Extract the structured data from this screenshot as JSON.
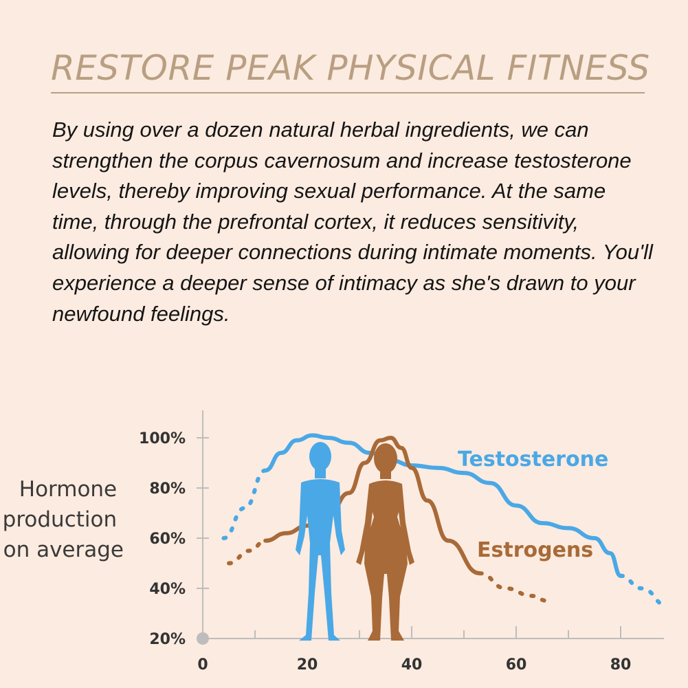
{
  "headline": "RESTORE PEAK PHYSICAL FITNESS",
  "body_text": "By using over a dozen natural herbal ingredients, we can strengthen the corpus cavernosum and increase testosterone levels, thereby improving sexual performance. At the same time, through the prefrontal cortex, it reduces sensitivity, allowing for deeper connections during intimate moments. You'll experience a deeper sense of intimacy as she's drawn to your newfound feelings.",
  "colors": {
    "background": "#fcebe0",
    "headline": "#b89f82",
    "testosterone": "#4aa8e6",
    "estrogens": "#a86a38",
    "axis": "#bdbdbd",
    "figure_male": "#4aa8e6",
    "figure_female": "#a86a38"
  },
  "icons": [
    "male-figure-icon",
    "female-figure-icon"
  ],
  "chart_data": {
    "type": "line",
    "ylabel": "Hormone production on average",
    "ylabel_lines": [
      "Hormone",
      "production",
      "on average"
    ],
    "xlabel": "",
    "xlim": [
      0,
      89
    ],
    "ylim": [
      20,
      104
    ],
    "xticks": [
      "0",
      "20",
      "40",
      "60",
      "80"
    ],
    "yticks": [
      "20%",
      "40%",
      "60%",
      "80%",
      "100%"
    ],
    "grid": false,
    "legend": "inline labels next to curves",
    "series": [
      {
        "name": "Testosterone",
        "x": [
          4,
          8,
          12,
          15,
          18,
          21,
          24,
          28,
          32,
          36,
          40,
          45,
          50,
          55,
          60,
          65,
          70,
          75,
          78,
          80,
          84,
          89
        ],
        "y": [
          60,
          72,
          87,
          94,
          99,
          101,
          100,
          98,
          94,
          91,
          89,
          88,
          86,
          82,
          73,
          66,
          64,
          60,
          54,
          45,
          40,
          33
        ],
        "dotted_x_ranges": [
          [
            4,
            12
          ],
          [
            80,
            89
          ]
        ]
      },
      {
        "name": "Estrogens",
        "x": [
          5,
          9,
          12,
          16,
          20,
          24,
          28,
          31,
          34,
          36,
          38,
          40,
          43,
          47,
          53,
          58,
          63,
          66
        ],
        "y": [
          50,
          55,
          59,
          62,
          65,
          69,
          78,
          90,
          99,
          100,
          96,
          88,
          75,
          59,
          46,
          40,
          37,
          35
        ],
        "dotted_x_ranges": [
          [
            5,
            12
          ],
          [
            53,
            66
          ]
        ]
      }
    ]
  }
}
